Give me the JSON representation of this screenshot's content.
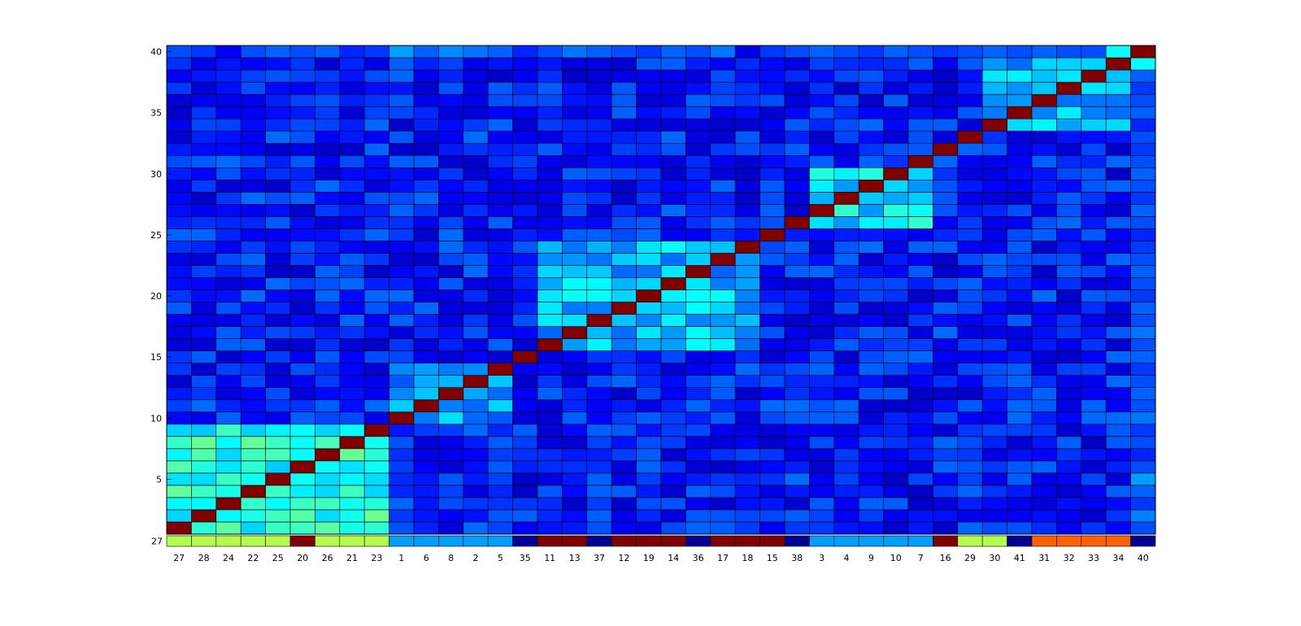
{
  "chart_data": {
    "type": "heatmap",
    "title": "",
    "xlabel": "",
    "ylabel": "",
    "grid": true,
    "colormap": "jet",
    "color_range": [
      0,
      1
    ],
    "x_tick_labels": [
      "27",
      "28",
      "24",
      "22",
      "25",
      "20",
      "26",
      "21",
      "23",
      "1",
      "6",
      "8",
      "2",
      "5",
      "35",
      "11",
      "13",
      "37",
      "12",
      "19",
      "14",
      "36",
      "17",
      "18",
      "15",
      "38",
      "3",
      "4",
      "9",
      "10",
      "7",
      "16",
      "29",
      "30",
      "41",
      "31",
      "32",
      "33",
      "34",
      "40"
    ],
    "y_tick_values": [
      5,
      10,
      15,
      20,
      25,
      30,
      35,
      40
    ],
    "y_tick_labels": [
      "5",
      "10",
      "15",
      "20",
      "25",
      "30",
      "35",
      "40"
    ],
    "ylim": [
      0.5,
      40.5
    ],
    "cluster_strip": {
      "label": "27",
      "values": [
        0.55,
        0.55,
        0.55,
        0.55,
        0.55,
        1.0,
        0.55,
        0.55,
        0.55,
        0.28,
        0.28,
        0.28,
        0.28,
        0.28,
        0.02,
        1.0,
        1.0,
        0.02,
        1.0,
        1.0,
        1.0,
        0.02,
        1.0,
        1.0,
        1.0,
        0.02,
        0.28,
        0.28,
        0.28,
        0.28,
        0.28,
        1.0,
        0.55,
        0.55,
        0.02,
        0.78,
        0.78,
        0.78,
        0.78,
        0.02
      ]
    },
    "diagonal_value": 1.0,
    "blocks": [
      {
        "rows": [
          1,
          9
        ],
        "cols": [
          1,
          9
        ],
        "value": 0.4
      },
      {
        "rows": [
          10,
          14
        ],
        "cols": [
          10,
          14
        ],
        "value": 0.28
      },
      {
        "rows": [
          16,
          24
        ],
        "cols": [
          16,
          24
        ],
        "value": 0.3
      },
      {
        "rows": [
          26,
          30
        ],
        "cols": [
          27,
          31
        ],
        "value": 0.35
      },
      {
        "rows": [
          34,
          39
        ],
        "cols": [
          34,
          39
        ],
        "value": 0.3
      }
    ],
    "background_value": 0.15,
    "last_column_values": [
      0.2,
      0.25,
      0.18,
      0.22,
      0.28,
      0.2,
      0.16,
      0.2,
      0.18,
      0.24,
      0.2,
      0.22,
      0.2,
      0.18,
      0.22,
      0.2,
      0.24,
      0.2,
      0.22,
      0.18,
      0.2,
      0.22,
      0.2,
      0.18,
      0.16,
      0.2,
      0.22,
      0.18,
      0.2,
      0.22,
      0.2,
      0.18,
      0.2,
      0.16,
      0.22,
      0.2,
      0.18,
      0.22,
      0.38,
      1.0
    ],
    "last_row_values": [
      0.2,
      0.18,
      0.12,
      0.2,
      0.22,
      0.2,
      0.22,
      0.16,
      0.18,
      0.28,
      0.22,
      0.26,
      0.24,
      0.22,
      0.16,
      0.2,
      0.24,
      0.22,
      0.2,
      0.18,
      0.22,
      0.2,
      0.24,
      0.1,
      0.18,
      0.2,
      0.22,
      0.2,
      0.18,
      0.22,
      0.2,
      0.18,
      0.2,
      0.22,
      0.2,
      0.22,
      0.2,
      0.2,
      0.38,
      1.0
    ]
  }
}
